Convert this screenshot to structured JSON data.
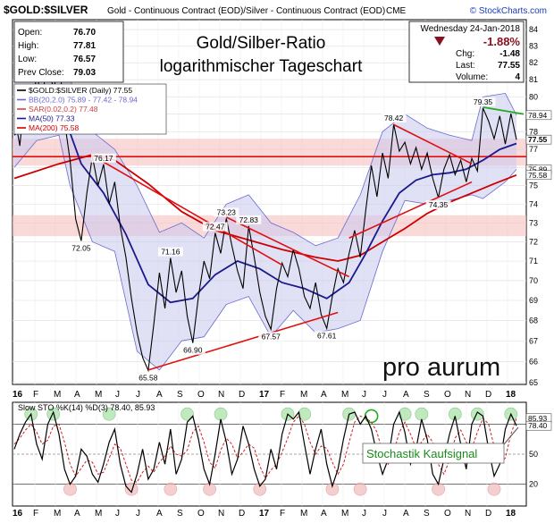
{
  "header": {
    "symbol": "$GOLD:$SILVER",
    "description": "Gold - Continuous Contract (EOD)/Silver - Continuous Contract (EOD)",
    "exchange": "CME",
    "brand": "© StockCharts.com",
    "date": "Wednesday  24-Jan-2018",
    "change_pct": "-1.88%",
    "stats": [
      {
        "label": "Open:",
        "value": "76.70"
      },
      {
        "label": "High:",
        "value": "77.81"
      },
      {
        "label": "Low:",
        "value": "76.57"
      },
      {
        "label": "Prev Close:",
        "value": "79.03"
      }
    ],
    "right_stats": [
      {
        "label": "Chg:",
        "value": "-1.48"
      },
      {
        "label": "Last:",
        "value": "77.55"
      },
      {
        "label": "Volume:",
        "value": "4"
      }
    ]
  },
  "overlay_title": [
    "Gold/Silber-Ratio",
    "logarithmischer Tageschart"
  ],
  "watermark_logo": "pro aurum",
  "legend": [
    {
      "label": "$GOLD:$SILVER (Daily) 77.55",
      "color": "#000000"
    },
    {
      "label": "BB(20,2.0) 75.89 - 77.42 - 78.94",
      "color": "#6a6ad0"
    },
    {
      "label": "SAR(0.02,0.2) 77.48",
      "color": "#d04040"
    },
    {
      "label": "MA(50) 77.33",
      "color": "#1a1a8c"
    },
    {
      "label": "MA(200) 75.58",
      "color": "#cc0000"
    }
  ],
  "stoch_title": "Slow STO %K(14) %D(3) 78.40, 85.93",
  "stoch_annotation": "Stochastik Kaufsignal",
  "colors": {
    "price": "#000000",
    "ma50": "#1a1a8c",
    "ma200": "#cc0000",
    "bb": "#6a6ad0",
    "trend": "#e01010",
    "green_line": "#22aa22",
    "zone": "#f6c0c0"
  },
  "chart_data": [
    {
      "type": "line",
      "scale": "log",
      "ylim": [
        65,
        84.5
      ],
      "y_ticks": [
        65,
        66,
        67,
        68,
        69,
        70,
        71,
        72,
        73,
        74,
        75,
        76,
        77,
        78,
        79,
        80,
        81,
        82,
        83,
        84
      ],
      "x_tick_labels": [
        "16",
        "F",
        "M",
        "A",
        "M",
        "J",
        "J",
        "A",
        "S",
        "O",
        "N",
        "D",
        "17",
        "F",
        "M",
        "A",
        "M",
        "J",
        "J",
        "A",
        "S",
        "O",
        "N",
        "D",
        "18"
      ],
      "price_points": [
        [
          0,
          79
        ],
        [
          1,
          77.2
        ],
        [
          2,
          80.6
        ],
        [
          3,
          78
        ],
        [
          4,
          81.5
        ],
        [
          5,
          79.5
        ],
        [
          6,
          83
        ],
        [
          7,
          80.2
        ],
        [
          8,
          82.4
        ],
        [
          9,
          78.6
        ],
        [
          10,
          76.4
        ],
        [
          11,
          73.2
        ],
        [
          12,
          72.05
        ],
        [
          13,
          74.6
        ],
        [
          14,
          76.6
        ],
        [
          15,
          75
        ],
        [
          16,
          76.17
        ],
        [
          17,
          74
        ],
        [
          18,
          75.2
        ],
        [
          19,
          72.8
        ],
        [
          20,
          71.2
        ],
        [
          21,
          69.1
        ],
        [
          22,
          67.4
        ],
        [
          23,
          66.2
        ],
        [
          24,
          65.58
        ],
        [
          25,
          67.8
        ],
        [
          26,
          70.4
        ],
        [
          27,
          68.6
        ],
        [
          28,
          71.16
        ],
        [
          29,
          69.4
        ],
        [
          30,
          70.5
        ],
        [
          31,
          68.2
        ],
        [
          32,
          66.9
        ],
        [
          33,
          69.2
        ],
        [
          34,
          71
        ],
        [
          35,
          70.1
        ],
        [
          36,
          72.47
        ],
        [
          37,
          71.4
        ],
        [
          38,
          73.23
        ],
        [
          39,
          71.8
        ],
        [
          40,
          70.5
        ],
        [
          41,
          69.6
        ],
        [
          42,
          72.83
        ],
        [
          43,
          71.2
        ],
        [
          44,
          69.4
        ],
        [
          45,
          68.2
        ],
        [
          46,
          67.57
        ],
        [
          47,
          69.6
        ],
        [
          48,
          70.9
        ],
        [
          49,
          70.2
        ],
        [
          50,
          71.6
        ],
        [
          51,
          70.6
        ],
        [
          52,
          69.2
        ],
        [
          53,
          68.6
        ],
        [
          54,
          69.9
        ],
        [
          55,
          68.3
        ],
        [
          56,
          67.61
        ],
        [
          57,
          69.2
        ],
        [
          58,
          70.6
        ],
        [
          59,
          69.9
        ],
        [
          60,
          71.4
        ],
        [
          61,
          72.6
        ],
        [
          62,
          71.2
        ],
        [
          63,
          73.7
        ],
        [
          64,
          76.1
        ],
        [
          65,
          74.4
        ],
        [
          66,
          76.8
        ],
        [
          67,
          75.4
        ],
        [
          68,
          78.42
        ],
        [
          69,
          76.9
        ],
        [
          70,
          77.4
        ],
        [
          71,
          76.2
        ],
        [
          72,
          77.1
        ],
        [
          73,
          75.9
        ],
        [
          74,
          76.8
        ],
        [
          75,
          75.4
        ],
        [
          76,
          74.35
        ],
        [
          77,
          75.9
        ],
        [
          78,
          76.7
        ],
        [
          79,
          75.6
        ],
        [
          80,
          76.4
        ],
        [
          81,
          75.2
        ],
        [
          82,
          76.5
        ],
        [
          83,
          75.8
        ],
        [
          84,
          79.35
        ],
        [
          85,
          78.6
        ],
        [
          86,
          77.6
        ],
        [
          87,
          78.9
        ],
        [
          88,
          77.3
        ],
        [
          89,
          79.03
        ],
        [
          90,
          77.55
        ]
      ],
      "ma50_points": [
        [
          0,
          77.8
        ],
        [
          4,
          79.2
        ],
        [
          7,
          80.4
        ],
        [
          9,
          78.8
        ],
        [
          12,
          76.2
        ],
        [
          16,
          74.6
        ],
        [
          20,
          72.4
        ],
        [
          24,
          69.8
        ],
        [
          28,
          68.9
        ],
        [
          32,
          69.1
        ],
        [
          36,
          70.3
        ],
        [
          40,
          71
        ],
        [
          44,
          70.6
        ],
        [
          48,
          69.9
        ],
        [
          52,
          69.6
        ],
        [
          56,
          69.1
        ],
        [
          60,
          69.9
        ],
        [
          63,
          71.4
        ],
        [
          66,
          73.1
        ],
        [
          69,
          74.6
        ],
        [
          72,
          75.3
        ],
        [
          75,
          75.6
        ],
        [
          78,
          75.7
        ],
        [
          81,
          75.9
        ],
        [
          84,
          76.4
        ],
        [
          87,
          77
        ],
        [
          90,
          77.33
        ]
      ],
      "ma200_points": [
        [
          0,
          75.4
        ],
        [
          8,
          76.2
        ],
        [
          14,
          76.7
        ],
        [
          18,
          76.4
        ],
        [
          24,
          75.1
        ],
        [
          30,
          73.6
        ],
        [
          36,
          72.6
        ],
        [
          42,
          72.1
        ],
        [
          48,
          71.6
        ],
        [
          54,
          71.2
        ],
        [
          58,
          71
        ],
        [
          62,
          71.3
        ],
        [
          66,
          72
        ],
        [
          70,
          72.7
        ],
        [
          74,
          73.5
        ],
        [
          78,
          74.1
        ],
        [
          82,
          74.6
        ],
        [
          86,
          75.1
        ],
        [
          90,
          75.58
        ]
      ],
      "bb_upper_points": [
        [
          0,
          81.5
        ],
        [
          4,
          82.8
        ],
        [
          8,
          83.5
        ],
        [
          10,
          81
        ],
        [
          14,
          78
        ],
        [
          18,
          77
        ],
        [
          22,
          75
        ],
        [
          26,
          72.5
        ],
        [
          30,
          73
        ],
        [
          34,
          72.2
        ],
        [
          38,
          74
        ],
        [
          42,
          74.5
        ],
        [
          46,
          73
        ],
        [
          50,
          72.5
        ],
        [
          54,
          71.8
        ],
        [
          58,
          72.2
        ],
        [
          62,
          74.5
        ],
        [
          66,
          78
        ],
        [
          70,
          79
        ],
        [
          74,
          78.2
        ],
        [
          78,
          77.8
        ],
        [
          82,
          77.5
        ],
        [
          84,
          80
        ],
        [
          88,
          80.2
        ],
        [
          90,
          78.94
        ]
      ],
      "bb_lower_points": [
        [
          0,
          76
        ],
        [
          4,
          77.5
        ],
        [
          8,
          77.8
        ],
        [
          10,
          75
        ],
        [
          14,
          72
        ],
        [
          18,
          71.5
        ],
        [
          22,
          66.5
        ],
        [
          26,
          65.6
        ],
        [
          30,
          67
        ],
        [
          34,
          67.2
        ],
        [
          38,
          68.8
        ],
        [
          42,
          69.2
        ],
        [
          46,
          67.2
        ],
        [
          50,
          68.5
        ],
        [
          54,
          67.4
        ],
        [
          58,
          67.6
        ],
        [
          62,
          68
        ],
        [
          66,
          71.5
        ],
        [
          70,
          74.2
        ],
        [
          74,
          74
        ],
        [
          78,
          74.2
        ],
        [
          82,
          74.5
        ],
        [
          84,
          74.3
        ],
        [
          88,
          75.2
        ],
        [
          90,
          75.89
        ]
      ],
      "price_labels": [
        {
          "x": 12,
          "y": 72.05,
          "label": "72.05"
        },
        {
          "x": 16,
          "y": 76.17,
          "label": "76.17"
        },
        {
          "x": 24,
          "y": 65.58,
          "label": "65.58"
        },
        {
          "x": 28,
          "y": 71.16,
          "label": "71.16"
        },
        {
          "x": 32,
          "y": 66.9,
          "label": "66.90"
        },
        {
          "x": 36,
          "y": 72.47,
          "label": "72.47"
        },
        {
          "x": 38,
          "y": 73.23,
          "label": "73.23"
        },
        {
          "x": 42,
          "y": 72.83,
          "label": "72.83"
        },
        {
          "x": 46,
          "y": 67.57,
          "label": "67.57"
        },
        {
          "x": 56,
          "y": 67.61,
          "label": "67.61"
        },
        {
          "x": 68,
          "y": 78.42,
          "label": "78.42"
        },
        {
          "x": 76,
          "y": 74.35,
          "label": "74.35"
        },
        {
          "x": 84,
          "y": 79.35,
          "label": "79.35"
        }
      ],
      "axis_tags": [
        {
          "y": 78.94,
          "label": "78.94"
        },
        {
          "y": 77.55,
          "label": "77.55"
        },
        {
          "y": 75.89,
          "label": "75.89"
        },
        {
          "y": 75.58,
          "label": "75.58"
        }
      ],
      "horizontal_line": 76.6,
      "zones": [
        [
          76.1,
          77.6
        ],
        [
          72.3,
          73.4
        ]
      ],
      "trend_lines": [
        [
          [
            16,
            76.3
          ],
          [
            48,
            70.8
          ]
        ],
        [
          [
            68,
            78.4
          ],
          [
            82,
            76.2
          ]
        ],
        [
          [
            24,
            65.6
          ],
          [
            58,
            68.4
          ]
        ],
        [
          [
            60,
            72.2
          ],
          [
            82,
            75.2
          ]
        ],
        [
          [
            38,
            73.3
          ],
          [
            60,
            70.2
          ]
        ]
      ],
      "green_line": [
        [
          84,
          79.4
        ],
        [
          90,
          79
        ]
      ]
    },
    {
      "type": "line",
      "ylim": [
        0,
        100
      ],
      "y_ticks": [
        20,
        50,
        80
      ],
      "y_tick_labels": [
        "20",
        "50",
        "80"
      ],
      "x_tick_labels": [
        "16",
        "F",
        "M",
        "A",
        "M",
        "J",
        "J",
        "A",
        "S",
        "O",
        "N",
        "D",
        "17",
        "F",
        "M",
        "A",
        "M",
        "J",
        "J",
        "A",
        "S",
        "O",
        "N",
        "D",
        "18"
      ],
      "k_values": [
        55,
        70,
        82,
        90,
        60,
        45,
        80,
        92,
        70,
        35,
        20,
        28,
        55,
        48,
        30,
        22,
        40,
        62,
        75,
        40,
        18,
        12,
        30,
        55,
        25,
        35,
        62,
        40,
        75,
        30,
        45,
        82,
        88,
        65,
        35,
        20,
        50,
        85,
        62,
        30,
        45,
        78,
        60,
        35,
        18,
        25,
        55,
        35,
        70,
        90,
        85,
        92,
        60,
        30,
        55,
        75,
        40,
        18,
        35,
        65,
        90,
        92,
        80,
        88,
        75,
        50,
        30,
        45,
        80,
        92,
        72,
        40,
        55,
        85,
        65,
        30,
        20,
        45,
        70,
        88,
        60,
        35,
        80,
        92,
        88,
        55,
        28,
        40,
        75,
        90,
        78.4
      ],
      "d_values": [
        60,
        66,
        74,
        80,
        72,
        60,
        64,
        78,
        80,
        62,
        40,
        28,
        36,
        44,
        42,
        30,
        32,
        46,
        60,
        56,
        40,
        24,
        22,
        32,
        38,
        32,
        42,
        48,
        58,
        50,
        48,
        54,
        72,
        78,
        62,
        42,
        36,
        54,
        66,
        60,
        46,
        52,
        60,
        56,
        38,
        26,
        34,
        40,
        52,
        66,
        82,
        88,
        80,
        62,
        50,
        58,
        56,
        42,
        30,
        40,
        62,
        82,
        88,
        86,
        82,
        72,
        52,
        40,
        52,
        72,
        82,
        70,
        56,
        62,
        70,
        62,
        40,
        30,
        44,
        66,
        74,
        62,
        56,
        72,
        86,
        80,
        58,
        42,
        46,
        70,
        85.93
      ],
      "value_tags": [
        {
          "y": 85.93,
          "label": "85.93"
        },
        {
          "y": 78.4,
          "label": "78.40"
        }
      ],
      "overbought_markers": [
        3,
        7,
        17,
        31,
        37,
        49,
        52,
        60,
        70,
        73,
        79,
        83,
        89
      ],
      "oversold_markers": [
        10,
        21,
        28,
        35,
        44,
        57,
        62,
        76,
        86
      ],
      "signal_marker": 64
    }
  ]
}
